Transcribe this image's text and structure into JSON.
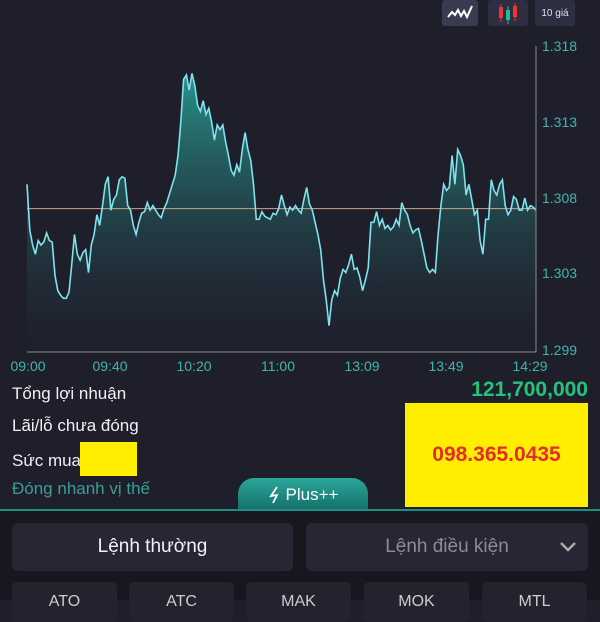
{
  "toolbar": {
    "line_chart_icon": "line-chart-icon",
    "candlestick_icon": "candlestick-icon",
    "depth_label": "10 giá"
  },
  "chart_data": {
    "type": "area",
    "x_tick_labels": [
      "09:00",
      "09:40",
      "10:20",
      "11:00",
      "13:09",
      "13:49",
      "14:29"
    ],
    "y_tick_labels": [
      "1.318",
      "1.313",
      "1.308",
      "1.303",
      "1.299"
    ],
    "ylim": [
      1.298,
      1.318
    ],
    "reference_price": 1.3073,
    "line_color": "#7fe3ee",
    "reference_color": "#c9a58a",
    "values": [
      1.3089,
      1.3059,
      1.3049,
      1.3043,
      1.3052,
      1.3049,
      1.3051,
      1.3057,
      1.3052,
      1.3051,
      1.3029,
      1.3019,
      1.3016,
      1.3014,
      1.3014,
      1.3018,
      1.3036,
      1.3056,
      1.3043,
      1.3039,
      1.3044,
      1.3046,
      1.3031,
      1.3049,
      1.3056,
      1.3069,
      1.3062,
      1.3075,
      1.3089,
      1.3094,
      1.3072,
      1.3079,
      1.3082,
      1.3092,
      1.3094,
      1.3093,
      1.3075,
      1.3072,
      1.3062,
      1.3056,
      1.3064,
      1.307,
      1.3071,
      1.3077,
      1.3072,
      1.3075,
      1.3072,
      1.3069,
      1.3067,
      1.3073,
      1.3077,
      1.3083,
      1.3089,
      1.3095,
      1.3108,
      1.313,
      1.3158,
      1.3161,
      1.3151,
      1.3162,
      1.3154,
      1.3141,
      1.3137,
      1.3144,
      1.3135,
      1.3139,
      1.313,
      1.3118,
      1.3128,
      1.3125,
      1.3128,
      1.3117,
      1.3108,
      1.3098,
      1.3095,
      1.3102,
      1.3097,
      1.3112,
      1.3123,
      1.3112,
      1.3105,
      1.3089,
      1.3066,
      1.3066,
      1.3071,
      1.3068,
      1.3067,
      1.3066,
      1.307,
      1.3069,
      1.3073,
      1.3082,
      1.3075,
      1.3069,
      1.3074,
      1.3072,
      1.3075,
      1.3072,
      1.307,
      1.3079,
      1.3087,
      1.3076,
      1.3072,
      1.3064,
      1.3056,
      1.3046,
      1.3026,
      1.3013,
      1.2996,
      1.3013,
      1.3019,
      1.3016,
      1.3027,
      1.3033,
      1.3031,
      1.3036,
      1.3043,
      1.3033,
      1.3034,
      1.3028,
      1.3019,
      1.3026,
      1.3034,
      1.3064,
      1.3064,
      1.3071,
      1.3062,
      1.3066,
      1.306,
      1.3062,
      1.3059,
      1.3061,
      1.3066,
      1.3062,
      1.3077,
      1.3072,
      1.3069,
      1.3062,
      1.3057,
      1.3059,
      1.306,
      1.3052,
      1.3043,
      1.3034,
      1.3031,
      1.3033,
      1.3031,
      1.3056,
      1.3075,
      1.3089,
      1.3085,
      1.3087,
      1.3108,
      1.3089,
      1.3112,
      1.3108,
      1.3102,
      1.3082,
      1.3089,
      1.3079,
      1.3069,
      1.3072,
      1.3052,
      1.3043,
      1.3066,
      1.3066,
      1.3092,
      1.3085,
      1.3082,
      1.3089,
      1.3092,
      1.3075,
      1.3069,
      1.3072,
      1.3081,
      1.3079,
      1.3072,
      1.3072,
      1.308,
      1.3072,
      1.3075,
      1.3074,
      1.3072
    ]
  },
  "stats": {
    "total_profit_label": "Tổng lợi nhuận",
    "total_profit_value": "121,700,000",
    "unrealized_label": "Lãi/lỗ chưa đóng",
    "buying_power_label": "Sức mua",
    "quick_close_label": "Đóng nhanh vị thế"
  },
  "overlay": {
    "phone": "098.365.0435"
  },
  "plus_tab": {
    "label": "Plus++",
    "icon": "lightning-icon"
  },
  "order_tabs": {
    "normal": "Lệnh thường",
    "conditional": "Lệnh điều kiện"
  },
  "order_types": [
    "ATO",
    "ATC",
    "MAK",
    "MOK",
    "MTL"
  ],
  "colors": {
    "background": "#1f1f2c",
    "accent": "#2aa79b",
    "profit": "#27c27a",
    "axis_text": "#3fb6ad"
  }
}
